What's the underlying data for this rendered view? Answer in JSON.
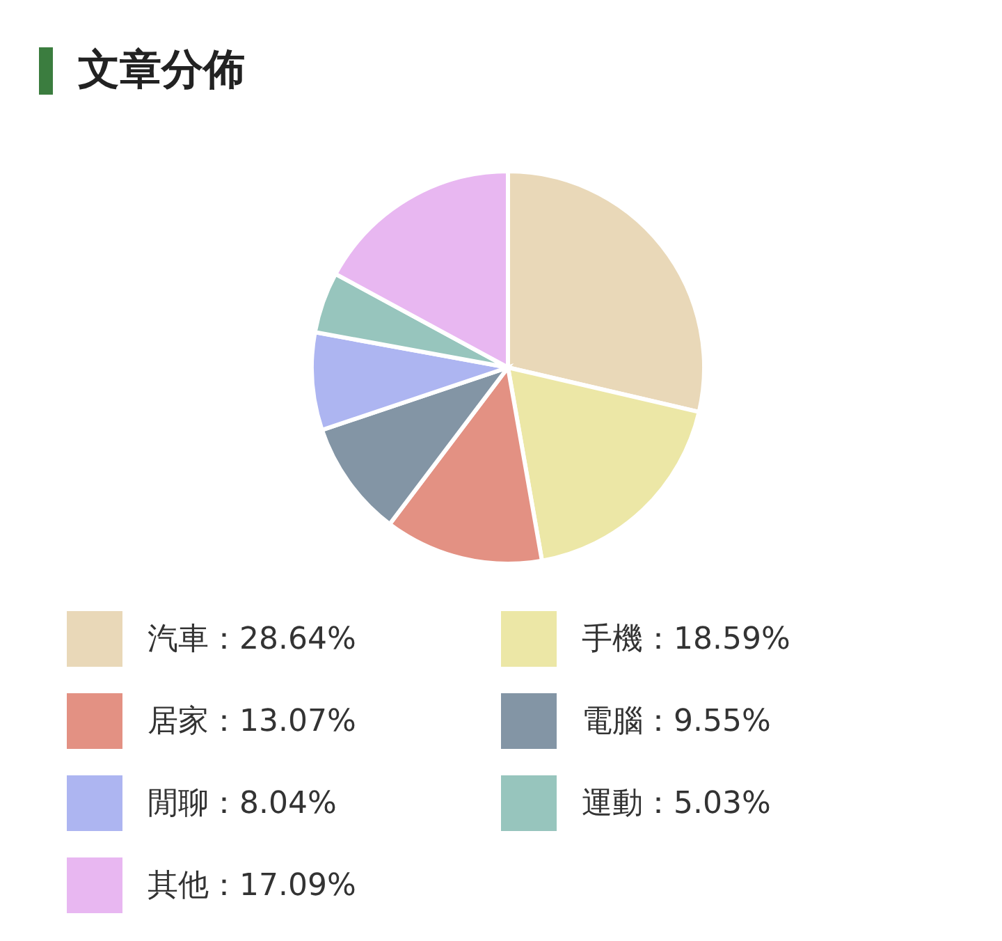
{
  "chart_data": {
    "type": "pie",
    "title": "文章分佈",
    "categories": [
      "汽車",
      "手機",
      "居家",
      "電腦",
      "閒聊",
      "運動",
      "其他"
    ],
    "values": [
      28.64,
      18.59,
      13.07,
      9.55,
      8.04,
      5.03,
      17.09
    ],
    "value_labels": [
      "28.64%",
      "18.59%",
      "13.07%",
      "9.55%",
      "8.04%",
      "5.03%",
      "17.09%"
    ],
    "colors": [
      "#e9d8b8",
      "#ece7a6",
      "#e39183",
      "#8395a5",
      "#adb5f1",
      "#97c5bd",
      "#e8b7f1"
    ],
    "legend": "bottom"
  }
}
